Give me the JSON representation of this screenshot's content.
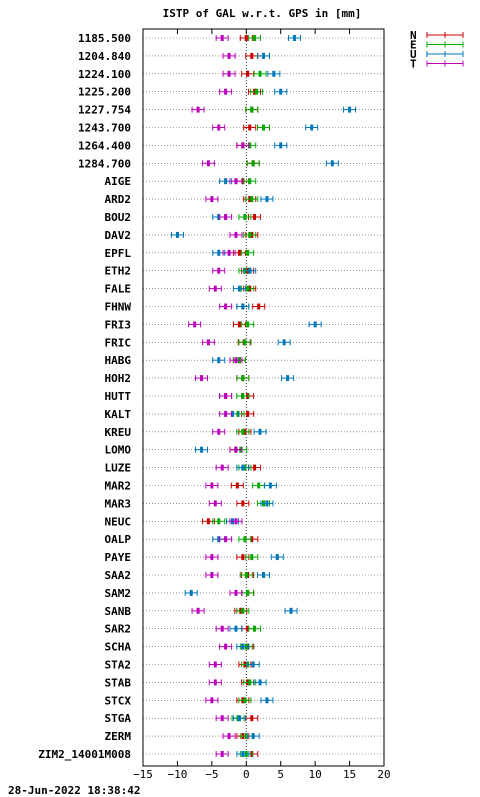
{
  "chart_data": {
    "type": "scatter",
    "title": "ISTP of GAL w.r.t. GPS in [mm]",
    "xlim": [
      -15,
      20
    ],
    "x_ticks": [
      -15,
      -10,
      -5,
      0,
      5,
      10,
      15,
      20
    ],
    "grid": "horizontal dotted per row, vertical dotted at 0",
    "legend_position": "top-right",
    "categories": [
      "1185.500",
      "1204.840",
      "1224.100",
      "1225.200",
      "1227.754",
      "1243.700",
      "1264.400",
      "1284.700",
      "AIGE",
      "ARD2",
      "BOU2",
      "DAV2",
      "EPFL",
      "ETH2",
      "FALE",
      "FHNW",
      "FRI3",
      "FRIC",
      "HABG",
      "HOH2",
      "HUTT",
      "KALT",
      "KREU",
      "LOMO",
      "LUZE",
      "MAR2",
      "MAR3",
      "NEUC",
      "OALP",
      "PAYE",
      "SAA2",
      "SAM2",
      "SANB",
      "SAR2",
      "SCHA",
      "STA2",
      "STAB",
      "STCX",
      "STGA",
      "ZERM",
      "ZIM2_14001M008"
    ],
    "series": [
      {
        "name": "N",
        "color": "#cc0000",
        "values": [
          0,
          0.8,
          0.2,
          1.2,
          0.8,
          0.5,
          -0.5,
          1.0,
          -0.5,
          0.5,
          1.2,
          0.8,
          -1,
          0.2,
          0.5,
          1.8,
          -1,
          -0.3,
          -1,
          -0.5,
          0.2,
          0.2,
          -0.2,
          -1.5,
          1.2,
          -1.3,
          -0.5,
          -5.5,
          0.8,
          -0.5,
          0.2,
          0.2,
          -0.8,
          0.2,
          0.2,
          -0.2,
          0.2,
          -0.5,
          0.8,
          -0.5,
          0.8
        ]
      },
      {
        "name": "E",
        "color": "#00aa00",
        "values": [
          1.2,
          2.5,
          2.0,
          1.5,
          0.8,
          2.5,
          0.5,
          1.0,
          0.5,
          0.8,
          -0.2,
          0.5,
          0.2,
          -0.2,
          0.2,
          -0.5,
          0.2,
          -0.2,
          -1,
          -0.5,
          -0.5,
          -1.2,
          -0.5,
          -0.8,
          -0.2,
          1.8,
          2.5,
          -4,
          -0.2,
          0.8,
          0,
          0.2,
          -0.5,
          1.2,
          0,
          0.2,
          0.5,
          -0.2,
          -1.2,
          0,
          0
        ]
      },
      {
        "name": "U",
        "color": "#0077bb",
        "values": [
          7,
          2.5,
          4,
          5,
          15,
          9.5,
          5,
          12.5,
          -3,
          3,
          -4,
          -10,
          -4,
          0.5,
          -1,
          -0.5,
          10,
          5.5,
          -4,
          6,
          -3,
          -2,
          2,
          -6.5,
          -0.5,
          3.5,
          3,
          -2,
          -4,
          4.5,
          2.5,
          -8,
          6.5,
          -1.5,
          -0.5,
          1,
          2,
          3,
          -1,
          1,
          -0.5
        ]
      },
      {
        "name": "T",
        "color": "#bb00bb",
        "values": [
          -3.5,
          -2.5,
          -2.5,
          -3,
          -7,
          -4,
          -0.5,
          -5.5,
          -1.5,
          -5,
          -3,
          -1.5,
          -2.5,
          -4,
          -4.5,
          -3,
          -7.5,
          -5.5,
          -1.5,
          -6.5,
          -3,
          -3,
          -4,
          -1.5,
          -3.5,
          -5,
          -4.5,
          -1.5,
          -3,
          -5,
          -5,
          -1.5,
          -7,
          -3.5,
          -3,
          -4.5,
          -4.5,
          -5,
          -3.5,
          -2.5,
          -3.5
        ]
      }
    ]
  },
  "footer": {
    "timestamp": "28-Jun-2022 18:38:42"
  }
}
